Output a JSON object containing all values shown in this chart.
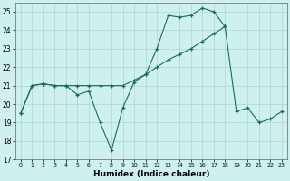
{
  "xlabel": "Humidex (Indice chaleur)",
  "background_color": "#cef0ee",
  "line_color": "#1a6b5a",
  "xlim": [
    -0.5,
    23.5
  ],
  "ylim": [
    17,
    25.5
  ],
  "yticks": [
    17,
    18,
    19,
    20,
    21,
    22,
    23,
    24,
    25
  ],
  "xticks": [
    0,
    1,
    2,
    3,
    4,
    5,
    6,
    7,
    8,
    9,
    10,
    11,
    12,
    13,
    14,
    15,
    16,
    17,
    18,
    19,
    20,
    21,
    22,
    23
  ],
  "line1_x": [
    0,
    1,
    2,
    3,
    4,
    5,
    6,
    7,
    8,
    9,
    10,
    11,
    12,
    13,
    14,
    15,
    16,
    17,
    18,
    19,
    20,
    21,
    22,
    23
  ],
  "line1_y": [
    19.5,
    21.0,
    21.1,
    21.0,
    21.0,
    20.5,
    20.7,
    19.0,
    17.5,
    19.8,
    21.2,
    21.6,
    23.0,
    24.8,
    24.7,
    24.8,
    25.2,
    25.0,
    24.2,
    19.6,
    19.8,
    19.0,
    19.2,
    19.6
  ],
  "line2_x": [
    0,
    1,
    2,
    3,
    4,
    5,
    6,
    7,
    8,
    9,
    10,
    11,
    12,
    13,
    14,
    15,
    16,
    17,
    18
  ],
  "line2_y": [
    19.5,
    21.0,
    21.1,
    21.0,
    21.0,
    21.0,
    21.0,
    21.0,
    21.0,
    21.0,
    21.3,
    21.6,
    22.0,
    22.4,
    22.7,
    23.0,
    23.4,
    23.8,
    24.2
  ]
}
